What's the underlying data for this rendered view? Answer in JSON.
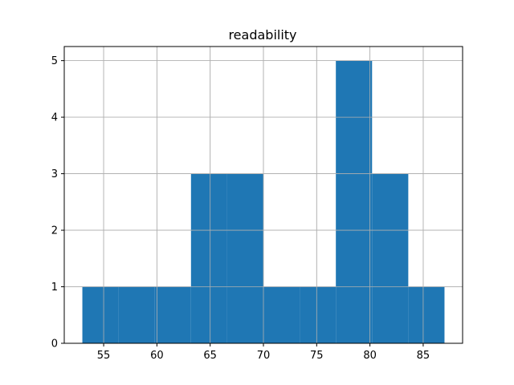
{
  "chart_data": {
    "type": "bar",
    "title": "readability",
    "xlabel": "",
    "ylabel": "",
    "bin_edges": [
      53.0,
      56.4,
      59.8,
      63.2,
      66.6,
      70.0,
      73.4,
      76.8,
      80.2,
      83.6,
      87.0
    ],
    "values": [
      1,
      1,
      1,
      3,
      3,
      1,
      1,
      5,
      3,
      1
    ],
    "xlim": [
      51.3,
      88.7
    ],
    "ylim": [
      0,
      5.25
    ],
    "xticks": [
      55,
      60,
      65,
      70,
      75,
      80,
      85
    ],
    "yticks": [
      0,
      1,
      2,
      3,
      4,
      5
    ],
    "grid": true,
    "bar_color": "#1f77b4",
    "grid_color": "#b0b0b0"
  }
}
